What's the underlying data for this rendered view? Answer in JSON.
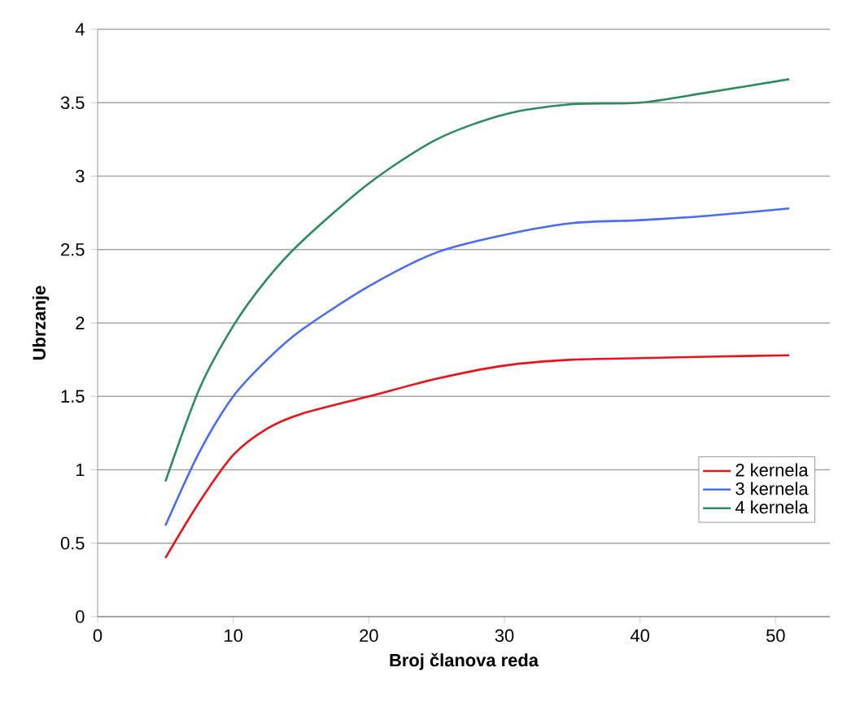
{
  "chart_data": {
    "type": "line",
    "xlabel": "Broj članova reda",
    "ylabel": "Ubrzanje",
    "x": [
      5,
      7.5,
      10,
      12.5,
      15,
      20,
      25,
      30,
      35,
      40,
      45,
      51
    ],
    "series": [
      {
        "name": "2 kernela",
        "color": "#e8141c",
        "values": [
          0.4,
          0.78,
          1.1,
          1.28,
          1.38,
          1.5,
          1.62,
          1.71,
          1.75,
          1.76,
          1.77,
          1.78
        ]
      },
      {
        "name": "3 kernela",
        "color": "#4a6cf0",
        "values": [
          0.62,
          1.12,
          1.5,
          1.75,
          1.95,
          2.25,
          2.48,
          2.6,
          2.68,
          2.7,
          2.73,
          2.78
        ]
      },
      {
        "name": "4 kernela",
        "color": "#2e8b5e",
        "values": [
          0.92,
          1.55,
          1.98,
          2.3,
          2.55,
          2.95,
          3.25,
          3.42,
          3.49,
          3.5,
          3.57,
          3.66
        ]
      }
    ],
    "xlim": [
      0,
      54
    ],
    "xticks": [
      0,
      10,
      20,
      30,
      40,
      50
    ],
    "ylim": [
      0,
      4
    ],
    "yticks": [
      0,
      0.5,
      1,
      1.5,
      2,
      2.5,
      3,
      3.5,
      4
    ],
    "grid": "y",
    "legend": "bottom right",
    "marker": "none",
    "line_style": "solid"
  }
}
